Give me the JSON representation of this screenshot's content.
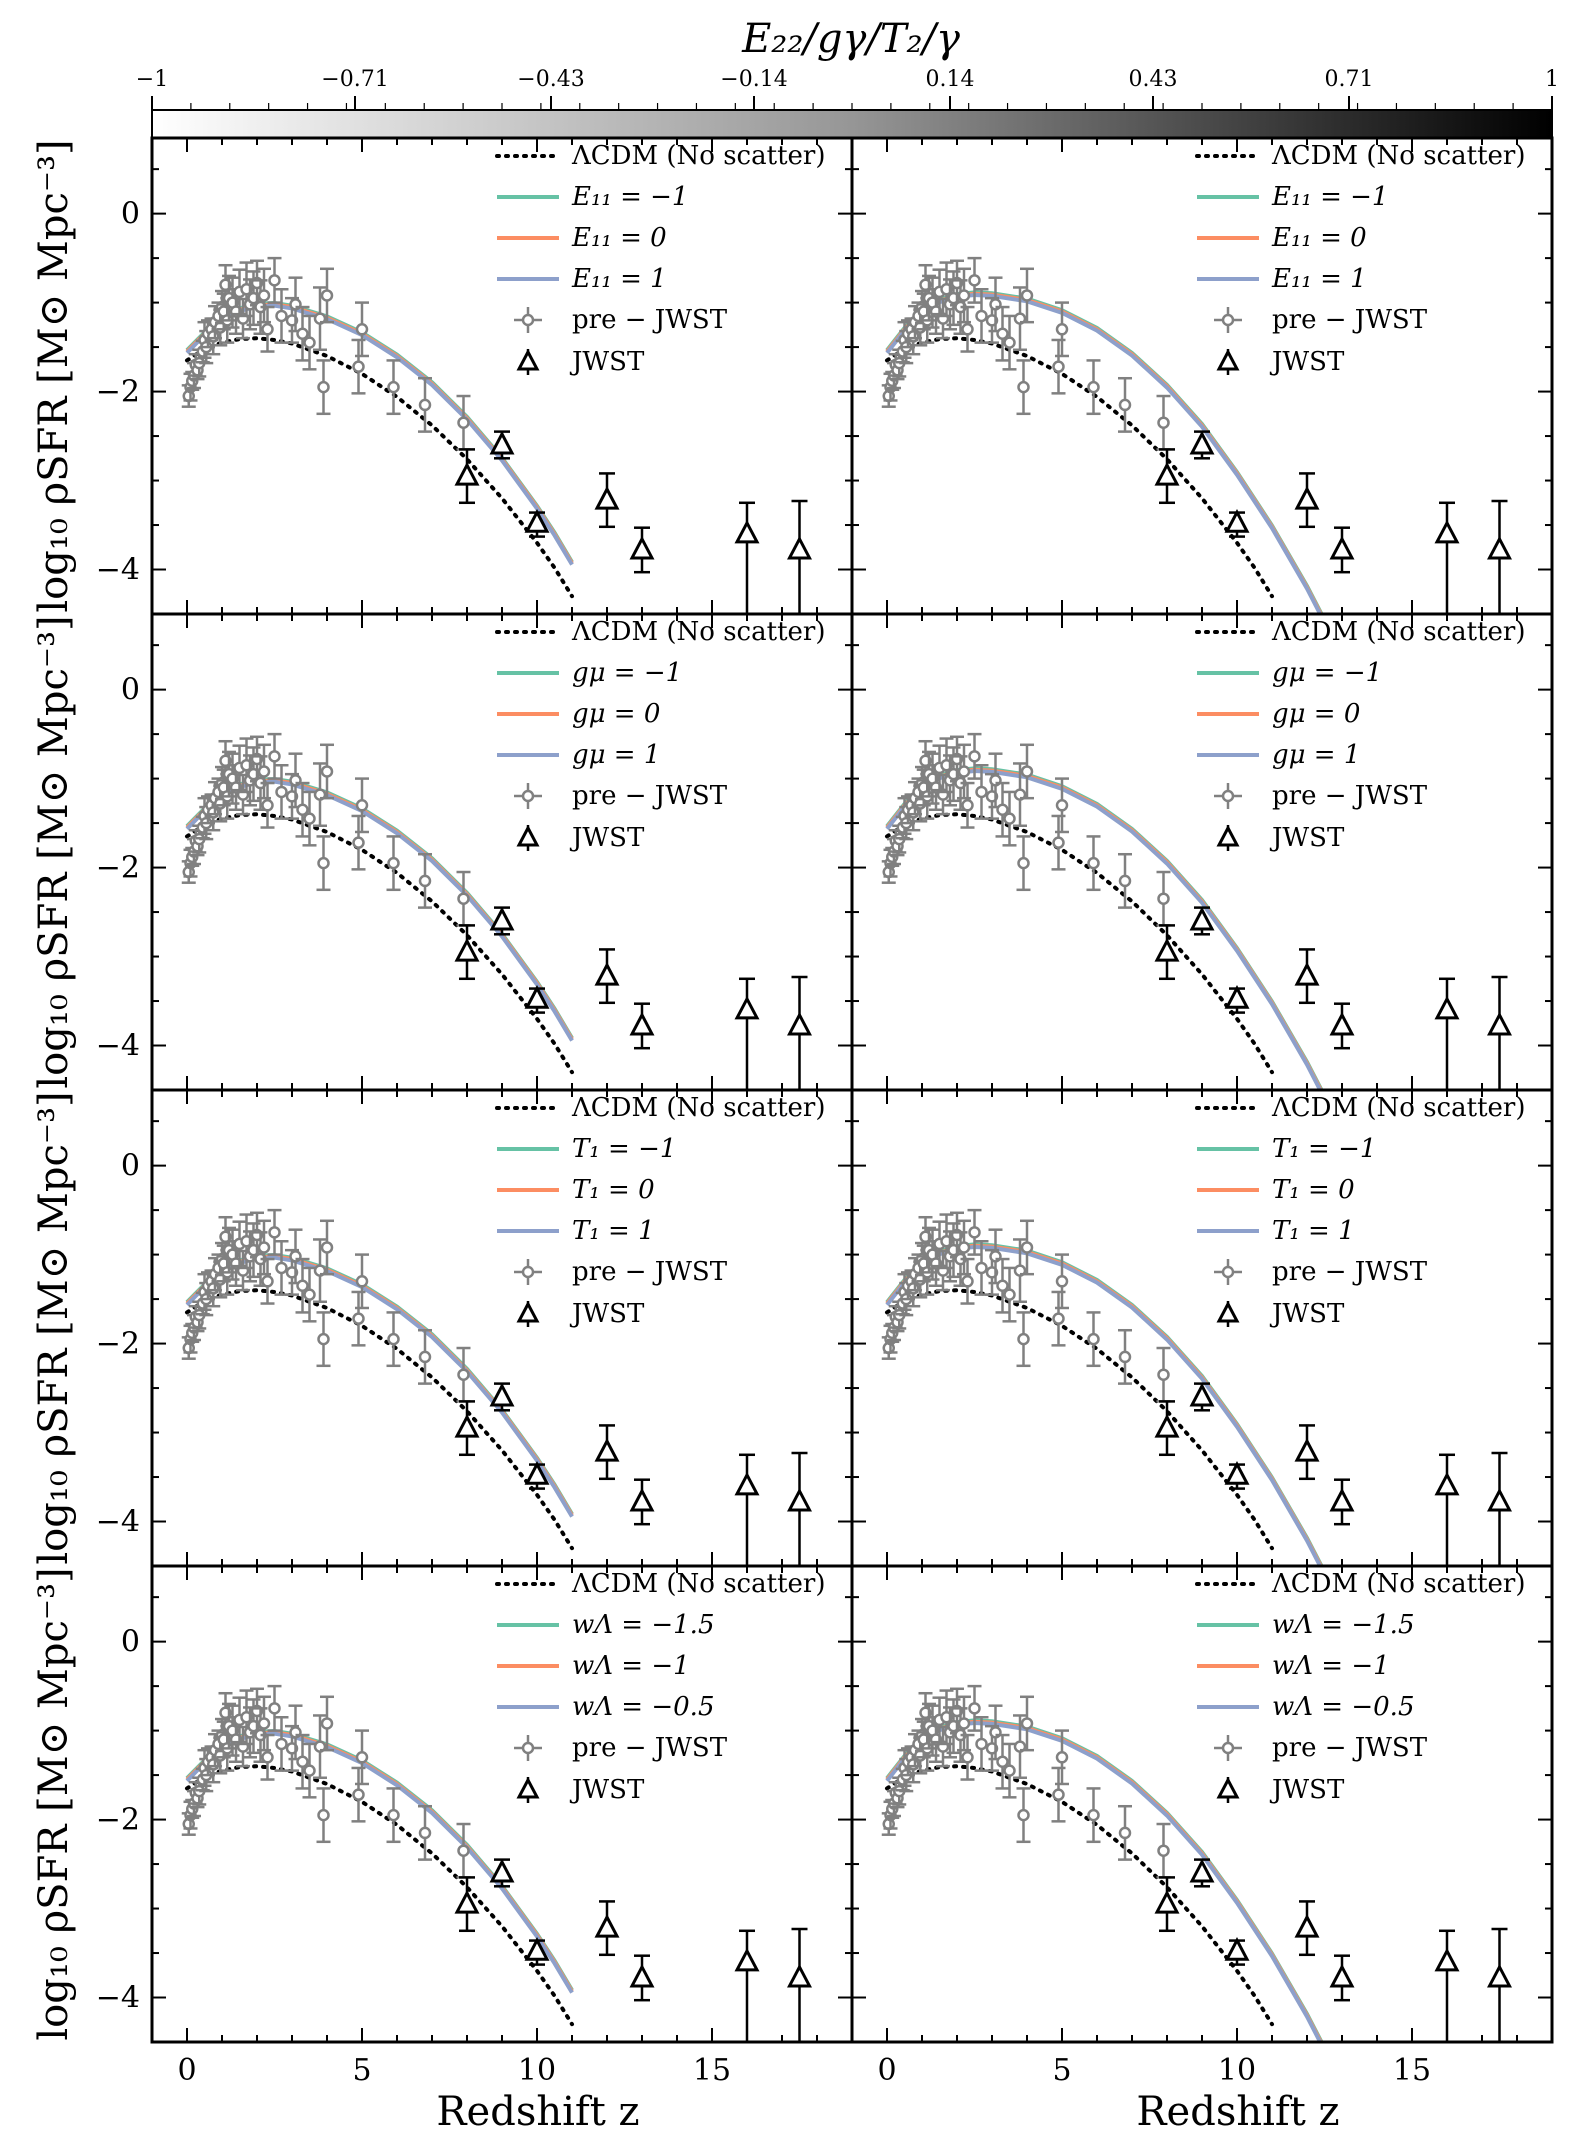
{
  "colors": {
    "lcdm": "#000000",
    "series_low": "#66c2a5",
    "series_mid": "#fc8d62",
    "series_high": "#8da0cb",
    "prejwst": "#808080",
    "jwst": "#000000"
  },
  "colorbar": {
    "title": "E₂₂/gγ/T₂/γ",
    "ticks": [
      "−1",
      "−0.71",
      "−0.43",
      "−0.14",
      "0.14",
      "0.43",
      "0.71",
      "1"
    ],
    "tick_values": [
      -1,
      -0.71,
      -0.43,
      -0.14,
      0.14,
      0.43,
      0.71,
      1
    ],
    "range": [
      -1,
      1
    ],
    "cmap": "Greys"
  },
  "axes": {
    "xlabel": "Redshift z",
    "ylabel": "log₁₀ ρSFR [M⊙ Mpc⁻³]",
    "xlim": [
      -1,
      19
    ],
    "ylim": [
      -4.5,
      0.85
    ],
    "xticks": [
      "0",
      "5",
      "10",
      "15"
    ],
    "xtick_values": [
      0,
      5,
      10,
      15
    ],
    "yticks": [
      "0",
      "−2",
      "−4"
    ],
    "ytick_values": [
      0,
      -2,
      -4
    ]
  },
  "legend": {
    "lcdm_label": "ΛCDM (No scatter)",
    "prejwst_label": "pre − JWST",
    "jwst_label": "JWST",
    "rows": [
      [
        "E₁₁ = −1",
        "E₁₁ = 0",
        "E₁₁ = 1"
      ],
      [
        "gμ = −1",
        "gμ = 0",
        "gμ = 1"
      ],
      [
        "T₁ = −1",
        "T₁ = 0",
        "T₁ = 1"
      ],
      [
        "wΛ = −1.5",
        "wΛ = −1",
        "wΛ = −0.5"
      ]
    ]
  },
  "chart_data": {
    "type": "line",
    "grid": false,
    "legend_position": "top-right",
    "lcdm_curve": {
      "x": [
        0,
        0.5,
        1,
        1.5,
        2,
        2.5,
        3,
        4,
        5,
        6,
        7,
        8,
        9,
        10,
        10.5,
        11
      ],
      "y": [
        -1.65,
        -1.52,
        -1.45,
        -1.41,
        -1.4,
        -1.42,
        -1.46,
        -1.6,
        -1.8,
        -2.06,
        -2.38,
        -2.76,
        -3.2,
        -3.7,
        -3.98,
        -4.3
      ]
    },
    "model_curves": {
      "left": {
        "x": [
          0,
          0.5,
          1,
          1.5,
          2,
          2.5,
          3,
          4,
          5,
          6,
          7,
          8,
          9,
          10,
          10.5,
          11
        ],
        "y": [
          -1.55,
          -1.35,
          -1.18,
          -1.08,
          -1.03,
          -1.02,
          -1.05,
          -1.17,
          -1.35,
          -1.6,
          -1.91,
          -2.3,
          -2.76,
          -3.3,
          -3.6,
          -3.93
        ]
      },
      "right": {
        "x": [
          0,
          0.5,
          1,
          1.5,
          2,
          2.5,
          3,
          4,
          5,
          6,
          7,
          8,
          9,
          10,
          11,
          12,
          12.5
        ],
        "y": [
          -1.55,
          -1.3,
          -1.1,
          -0.98,
          -0.92,
          -0.9,
          -0.91,
          -0.97,
          -1.1,
          -1.3,
          -1.58,
          -1.94,
          -2.38,
          -2.92,
          -3.52,
          -4.2,
          -4.58
        ]
      }
    },
    "prejwst": {
      "x": [
        0.05,
        0.1,
        0.15,
        0.2,
        0.25,
        0.3,
        0.35,
        0.45,
        0.5,
        0.55,
        0.6,
        0.7,
        0.75,
        0.8,
        0.9,
        0.95,
        1.0,
        1.05,
        1.1,
        1.15,
        1.2,
        1.3,
        1.4,
        1.5,
        1.6,
        1.7,
        1.8,
        1.9,
        2.0,
        2.1,
        2.2,
        2.3,
        2.5,
        2.7,
        3.0,
        3.1,
        3.3,
        3.5,
        3.8,
        3.9,
        4.0,
        4.9,
        5.0,
        5.9,
        6.8,
        7.9
      ],
      "y": [
        -2.05,
        -1.95,
        -1.88,
        -1.82,
        -1.7,
        -1.76,
        -1.68,
        -1.55,
        -1.42,
        -1.5,
        -1.35,
        -1.3,
        -1.38,
        -1.22,
        -1.15,
        -1.28,
        -1.05,
        -1.1,
        -0.8,
        -1.2,
        -0.95,
        -1.0,
        -1.1,
        -0.88,
        -1.18,
        -0.85,
        -1.02,
        -0.95,
        -0.78,
        -1.05,
        -0.92,
        -1.3,
        -0.75,
        -1.15,
        -1.2,
        -1.02,
        -1.35,
        -1.45,
        -1.18,
        -1.95,
        -0.92,
        -1.72,
        -1.3,
        -1.95,
        -2.15,
        -2.35
      ],
      "yerr": [
        0.12,
        0.15,
        0.1,
        0.14,
        0.12,
        0.1,
        0.15,
        0.12,
        0.2,
        0.18,
        0.15,
        0.12,
        0.2,
        0.18,
        0.15,
        0.2,
        0.18,
        0.2,
        0.22,
        0.25,
        0.25,
        0.28,
        0.25,
        0.25,
        0.22,
        0.3,
        0.28,
        0.3,
        0.25,
        0.3,
        0.3,
        0.25,
        0.25,
        0.3,
        0.25,
        0.3,
        0.3,
        0.3,
        0.35,
        0.3,
        0.3,
        0.3,
        0.3,
        0.3,
        0.3,
        0.3
      ]
    },
    "jwst": {
      "x": [
        8,
        9,
        10,
        12,
        13,
        16,
        17.5
      ],
      "y": [
        -2.95,
        -2.6,
        -3.48,
        -3.22,
        -3.78,
        -3.6,
        -3.78
      ],
      "yerr_lo": [
        0.3,
        0.15,
        0.15,
        0.3,
        0.25,
        1.5,
        1.5
      ],
      "yerr_hi": [
        0.3,
        0.15,
        0.12,
        0.3,
        0.25,
        0.35,
        0.55
      ]
    }
  }
}
